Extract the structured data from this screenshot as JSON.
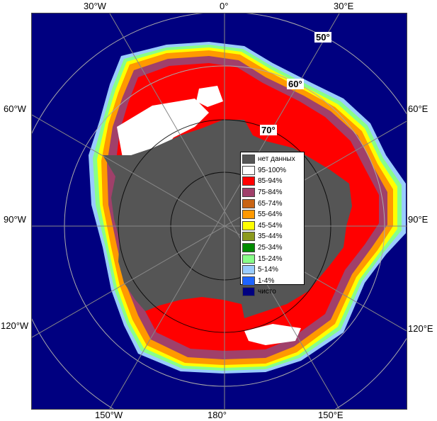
{
  "map": {
    "lon_labels_top": [
      "30°W",
      "0°",
      "30°E"
    ],
    "lon_labels_bottom": [
      "150°W",
      "180°",
      "150°E"
    ],
    "lon_labels_left": [
      "60°W",
      "90°W",
      "120°W"
    ],
    "lon_labels_right": [
      "60°E",
      "90°E",
      "120°E"
    ],
    "lat_labels": [
      "50°",
      "60°",
      "70°"
    ]
  },
  "legend": {
    "items": [
      {
        "label": "нет данных",
        "color": "#555555"
      },
      {
        "label": "95-100%",
        "color": "#ffffff"
      },
      {
        "label": "85-94%",
        "color": "#ff0000"
      },
      {
        "label": "75-84%",
        "color": "#a0406a"
      },
      {
        "label": "65-74%",
        "color": "#c86414"
      },
      {
        "label": "55-64%",
        "color": "#ff9900"
      },
      {
        "label": "45-54%",
        "color": "#ffff00"
      },
      {
        "label": "35-44%",
        "color": "#8c9a1e"
      },
      {
        "label": "25-34%",
        "color": "#008c00"
      },
      {
        "label": "15-24%",
        "color": "#88ff88"
      },
      {
        "label": "5-14%",
        "color": "#99ccff"
      },
      {
        "label": "1-4%",
        "color": "#1e64ff"
      },
      {
        "label": "чисто",
        "color": "#000080"
      }
    ]
  }
}
